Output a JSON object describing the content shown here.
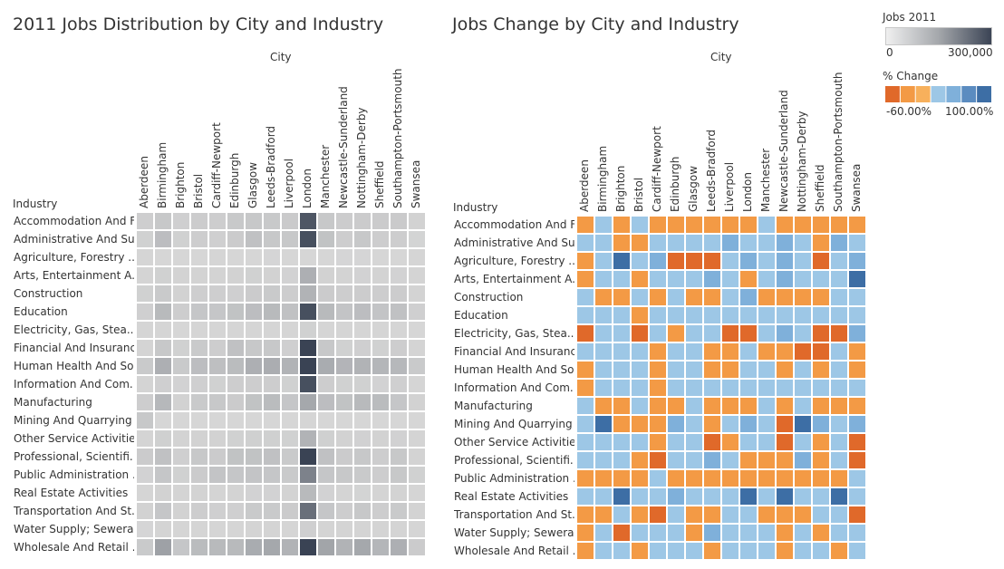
{
  "titles": {
    "left": "2011 Jobs Distribution by City and Industry",
    "right": "Jobs Change by City and Industry"
  },
  "chart_data": [
    {
      "type": "heatmap",
      "title": "2011 Jobs Distribution by City and Industry",
      "xlabel": "City",
      "ylabel": "Industry",
      "columns": [
        "Aberdeen",
        "Birmingham",
        "Brighton",
        "Bristol",
        "Cardiff-Newport",
        "Edinburgh",
        "Glasgow",
        "Leeds-Bradford",
        "Liverpool",
        "London",
        "Manchester",
        "Newcastle-Sunderland",
        "Nottingham-Derby",
        "Sheffield",
        "Southampton-Portsmouth",
        "Swansea"
      ],
      "rows": [
        "Accommodation And F..",
        "Administrative And Su..",
        "Agriculture, Forestry ..",
        "Arts, Entertainment A..",
        "Construction",
        "Education",
        "Electricity, Gas, Stea..",
        "Financial And Insuranc..",
        "Human Health And So..",
        "Information And Com..",
        "Manufacturing",
        "Mining And Quarrying",
        "Other Service Activities",
        "Professional, Scientifi..",
        "Public Administration ..",
        "Real Estate Activities",
        "Transportation And St..",
        "Water Supply; Sewera..",
        "Wholesale And Retail .."
      ],
      "values": [
        [
          22000,
          40000,
          20000,
          28000,
          25000,
          38000,
          40000,
          38000,
          33000,
          270000,
          40000,
          28000,
          30000,
          30000,
          33000,
          12000
        ],
        [
          15000,
          70000,
          15000,
          25000,
          20000,
          30000,
          60000,
          40000,
          40000,
          280000,
          55000,
          25000,
          40000,
          25000,
          25000,
          7000
        ],
        [
          3000,
          1000,
          1000,
          1000,
          2000,
          1000,
          1000,
          1500,
          1000,
          1000,
          1000,
          1500,
          1500,
          1000,
          1000,
          2000
        ],
        [
          5000,
          15000,
          8000,
          9000,
          8000,
          12000,
          15000,
          12000,
          10000,
          110000,
          12000,
          9000,
          10000,
          8000,
          10000,
          5000
        ],
        [
          15000,
          35000,
          12000,
          22000,
          22000,
          20000,
          30000,
          35000,
          25000,
          100000,
          30000,
          25000,
          28000,
          25000,
          28000,
          9000
        ],
        [
          20000,
          80000,
          25000,
          45000,
          45000,
          55000,
          70000,
          80000,
          60000,
          280000,
          80000,
          50000,
          70000,
          50000,
          60000,
          20000
        ],
        [
          2000,
          3000,
          1000,
          2000,
          2000,
          3000,
          4000,
          3000,
          2000,
          15000,
          3000,
          2000,
          4000,
          2000,
          3000,
          1000
        ],
        [
          6000,
          40000,
          15000,
          35000,
          25000,
          60000,
          40000,
          40000,
          20000,
          330000,
          40000,
          15000,
          20000,
          15000,
          25000,
          6000
        ],
        [
          35000,
          110000,
          35000,
          70000,
          65000,
          75000,
          110000,
          115000,
          100000,
          400000,
          120000,
          95000,
          100000,
          90000,
          85000,
          35000
        ],
        [
          5000,
          20000,
          10000,
          20000,
          15000,
          25000,
          25000,
          25000,
          15000,
          280000,
          25000,
          15000,
          15000,
          10000,
          20000,
          3000
        ],
        [
          25000,
          85000,
          12000,
          35000,
          40000,
          30000,
          55000,
          75000,
          45000,
          130000,
          70000,
          55000,
          80000,
          75000,
          45000,
          12000
        ],
        [
          40000,
          500,
          200,
          500,
          500,
          500,
          1000,
          1000,
          500,
          2000,
          500,
          500,
          1000,
          500,
          500,
          500
        ],
        [
          6000,
          18000,
          9000,
          12000,
          12000,
          15000,
          18000,
          18000,
          15000,
          100000,
          18000,
          12000,
          14000,
          12000,
          14000,
          5000
        ],
        [
          30000,
          60000,
          20000,
          40000,
          30000,
          55000,
          55000,
          60000,
          35000,
          350000,
          60000,
          30000,
          40000,
          25000,
          40000,
          8000
        ],
        [
          10000,
          45000,
          15000,
          30000,
          50000,
          45000,
          50000,
          45000,
          35000,
          200000,
          45000,
          40000,
          35000,
          25000,
          40000,
          15000
        ],
        [
          3000,
          12000,
          5000,
          8000,
          6000,
          8000,
          10000,
          10000,
          8000,
          80000,
          10000,
          6000,
          7000,
          5000,
          8000,
          2000
        ],
        [
          12000,
          45000,
          12000,
          25000,
          20000,
          20000,
          35000,
          35000,
          30000,
          230000,
          45000,
          25000,
          40000,
          25000,
          35000,
          8000
        ],
        [
          1500,
          5000,
          2000,
          3000,
          4000,
          3000,
          6000,
          6000,
          4000,
          20000,
          6000,
          5000,
          6000,
          5000,
          5000,
          2000
        ],
        [
          35000,
          150000,
          45000,
          75000,
          80000,
          80000,
          120000,
          130000,
          100000,
          450000,
          140000,
          100000,
          130000,
          90000,
          110000,
          30000
        ]
      ],
      "legend": {
        "title": "Jobs 2011",
        "min_label": "0",
        "max_label": "300,000",
        "min": 0,
        "max": 300000
      }
    },
    {
      "type": "heatmap",
      "title": "Jobs Change by City and Industry",
      "xlabel": "City",
      "ylabel": "Industry",
      "columns": [
        "Aberdeen",
        "Birmingham",
        "Brighton",
        "Bristol",
        "Cardiff-Newport",
        "Edinburgh",
        "Glasgow",
        "Leeds-Bradford",
        "Liverpool",
        "London",
        "Manchester",
        "Newcastle-Sunderland",
        "Nottingham-Derby",
        "Sheffield",
        "Southampton-Portsmouth",
        "Swansea"
      ],
      "rows": [
        "Accommodation And F..",
        "Administrative And Su..",
        "Agriculture, Forestry ..",
        "Arts, Entertainment A..",
        "Construction",
        "Education",
        "Electricity, Gas, Stea..",
        "Financial And Insuranc..",
        "Human Health And So..",
        "Information And Com..",
        "Manufacturing",
        "Mining And Quarrying",
        "Other Service Activities",
        "Professional, Scientifi..",
        "Public Administration ..",
        "Real Estate Activities",
        "Transportation And St..",
        "Water Supply; Sewera..",
        "Wholesale And Retail .."
      ],
      "value_unit": "% change",
      "values": [
        [
          -20,
          10,
          -20,
          10,
          -20,
          -20,
          -20,
          -20,
          -20,
          -20,
          10,
          -20,
          -20,
          -20,
          -20,
          -20
        ],
        [
          30,
          10,
          -20,
          -20,
          10,
          10,
          10,
          10,
          50,
          10,
          10,
          50,
          10,
          -20,
          50,
          10
        ],
        [
          -20,
          10,
          110,
          10,
          50,
          -60,
          -40,
          -40,
          10,
          50,
          10,
          50,
          10,
          -40,
          30,
          50
        ],
        [
          -20,
          10,
          10,
          -20,
          10,
          10,
          10,
          50,
          10,
          -20,
          10,
          50,
          10,
          30,
          10,
          80
        ],
        [
          10,
          -20,
          -20,
          10,
          -20,
          10,
          -20,
          -20,
          10,
          50,
          -20,
          -20,
          -20,
          -20,
          10,
          10
        ],
        [
          10,
          10,
          10,
          -20,
          10,
          10,
          10,
          10,
          10,
          10,
          10,
          10,
          10,
          10,
          10,
          10
        ],
        [
          -60,
          10,
          30,
          -40,
          10,
          -20,
          10,
          10,
          -40,
          -40,
          10,
          50,
          10,
          -40,
          -40,
          50
        ],
        [
          10,
          10,
          10,
          10,
          -20,
          10,
          10,
          -20,
          -20,
          10,
          -20,
          -20,
          -40,
          -40,
          10,
          -20
        ],
        [
          -20,
          10,
          10,
          10,
          -20,
          10,
          10,
          -20,
          -20,
          10,
          10,
          -20,
          10,
          -20,
          10,
          -20
        ],
        [
          -20,
          10,
          10,
          10,
          -20,
          10,
          10,
          10,
          10,
          10,
          10,
          10,
          10,
          10,
          10,
          10
        ],
        [
          10,
          -20,
          -20,
          10,
          -20,
          -20,
          10,
          -20,
          -20,
          -20,
          10,
          -20,
          10,
          -20,
          -20,
          -20
        ],
        [
          10,
          80,
          -20,
          -20,
          -20,
          50,
          10,
          -20,
          10,
          50,
          10,
          -60,
          130,
          50,
          10,
          50
        ],
        [
          30,
          10,
          10,
          10,
          -20,
          10,
          10,
          -40,
          -20,
          10,
          10,
          -40,
          10,
          -20,
          10,
          -40
        ],
        [
          10,
          10,
          10,
          -20,
          -40,
          10,
          10,
          50,
          10,
          -20,
          -20,
          -20,
          50,
          -20,
          10,
          -40
        ],
        [
          -20,
          -20,
          -20,
          -20,
          10,
          -20,
          -20,
          -20,
          -20,
          -20,
          -20,
          -20,
          -20,
          -20,
          -20,
          10
        ],
        [
          10,
          10,
          80,
          10,
          10,
          50,
          10,
          10,
          10,
          80,
          10,
          80,
          10,
          10,
          80,
          10
        ],
        [
          -20,
          -20,
          10,
          -20,
          -40,
          10,
          -20,
          -20,
          10,
          10,
          -20,
          -20,
          -20,
          10,
          10,
          -40
        ],
        [
          -20,
          10,
          -40,
          10,
          10,
          10,
          -20,
          50,
          10,
          10,
          10,
          -20,
          10,
          -20,
          10,
          10
        ],
        [
          -20,
          10,
          10,
          -20,
          10,
          10,
          10,
          -20,
          10,
          10,
          10,
          -20,
          10,
          10,
          -20,
          10
        ]
      ],
      "legend": {
        "title": "% Change",
        "min_label": "-60.00%",
        "max_label": "100.00%",
        "min": -60,
        "max": 100
      }
    }
  ]
}
